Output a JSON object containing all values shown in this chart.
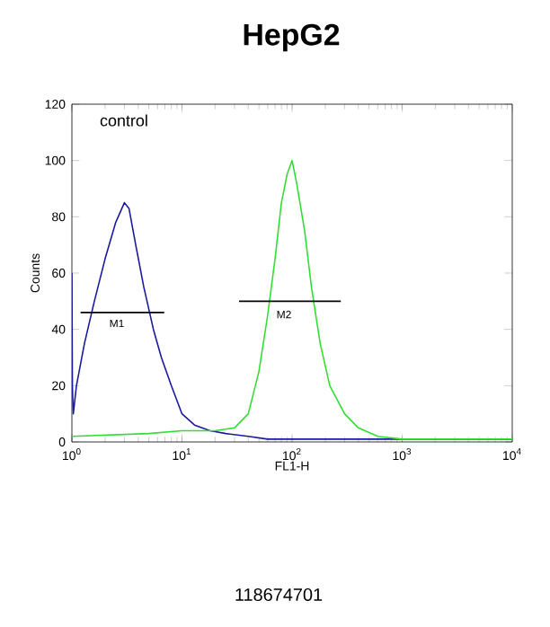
{
  "chart_data": {
    "type": "line",
    "title": "HepG2",
    "xlabel": "FL1-H",
    "ylabel": "Counts",
    "log": "x",
    "grid": false,
    "marker": "none",
    "line_style": "solid",
    "xlim": [
      1,
      10000
    ],
    "ylim": [
      0,
      120
    ],
    "xticks": [
      {
        "value": 1,
        "label": "10$^{0}$"
      },
      {
        "value": 10,
        "label": "10$^{1}$"
      },
      {
        "value": 100,
        "label": "10$^{2}$"
      },
      {
        "value": 1000,
        "label": "10$^{3}$"
      },
      {
        "value": 10000,
        "label": "10$^{4}$"
      }
    ],
    "yticks": [
      0,
      20,
      40,
      60,
      80,
      100,
      120
    ],
    "series": [
      {
        "color": "#1a1aa0",
        "x": [
          1.0,
          1.01,
          1.03,
          1.1,
          1.3,
          1.6,
          2.0,
          2.5,
          3.0,
          3.3,
          3.8,
          4.5,
          5.5,
          6.5,
          8,
          10,
          13,
          18,
          25,
          40,
          60,
          100,
          300,
          1000,
          10000
        ],
        "values": [
          60,
          20,
          10,
          20,
          35,
          50,
          65,
          78,
          85,
          83,
          70,
          55,
          40,
          30,
          20,
          10,
          6,
          4,
          3,
          2,
          1,
          1,
          1,
          1,
          1
        ]
      },
      {
        "color": "#33dd33",
        "x": [
          1,
          5,
          10,
          20,
          30,
          40,
          50,
          60,
          70,
          80,
          90,
          100,
          110,
          130,
          150,
          180,
          220,
          300,
          400,
          600,
          1000,
          10000
        ],
        "values": [
          2,
          3,
          4,
          4,
          5,
          10,
          25,
          45,
          65,
          85,
          95,
          100,
          92,
          75,
          55,
          35,
          20,
          10,
          5,
          2,
          1,
          1
        ]
      },
      {
        "color": "#000000",
        "x": [
          1.2,
          6.9
        ],
        "values": [
          46,
          46
        ]
      },
      {
        "color": "#000000",
        "x": [
          33,
          277
        ],
        "values": [
          50,
          50
        ]
      }
    ],
    "annotations": [
      "control",
      "M1",
      "M2",
      "118674701"
    ]
  }
}
